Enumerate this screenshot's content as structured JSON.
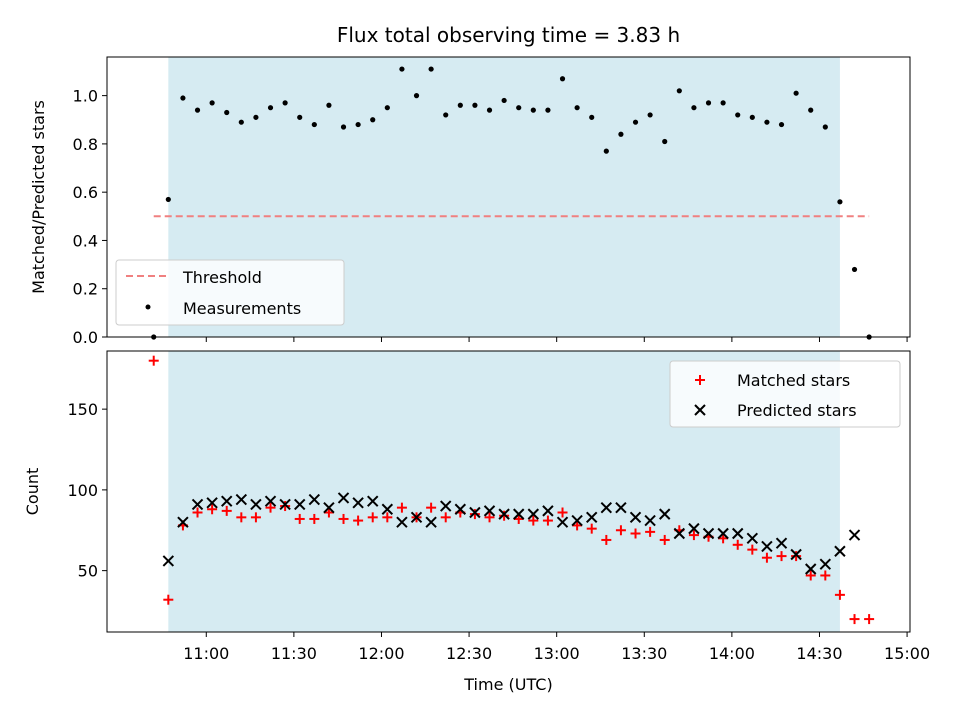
{
  "chart_data": [
    {
      "type": "scatter",
      "title": "Flux total observing time = 3.83 h",
      "xlabel": "",
      "ylabel": "Matched/Predicted stars",
      "ylim": [
        0,
        1.16
      ],
      "yticks": [
        "0.0",
        "0.2",
        "0.4",
        "0.6",
        "0.8",
        "1.0"
      ],
      "shaded_range": [
        "10:47",
        "14:37"
      ],
      "legend": {
        "placement": "lower-left",
        "entries": [
          "Threshold",
          "Measurements"
        ]
      },
      "threshold": {
        "name": "Threshold",
        "value": 0.5,
        "x_range": [
          "10:42",
          "14:47"
        ],
        "color": "#f08080"
      },
      "series": [
        {
          "name": "Measurements",
          "color": "#000000",
          "x": [
            "10:42",
            "10:47",
            "10:52",
            "10:57",
            "11:02",
            "11:07",
            "11:12",
            "11:17",
            "11:22",
            "11:27",
            "11:32",
            "11:37",
            "11:42",
            "11:47",
            "11:52",
            "11:57",
            "12:02",
            "12:07",
            "12:12",
            "12:17",
            "12:22",
            "12:27",
            "12:32",
            "12:37",
            "12:42",
            "12:47",
            "12:52",
            "12:57",
            "13:02",
            "13:07",
            "13:12",
            "13:17",
            "13:22",
            "13:27",
            "13:32",
            "13:37",
            "13:42",
            "13:47",
            "13:52",
            "13:57",
            "14:02",
            "14:07",
            "14:12",
            "14:17",
            "14:22",
            "14:27",
            "14:32",
            "14:37",
            "14:42",
            "14:47"
          ],
          "y": [
            0.0,
            0.57,
            0.99,
            0.94,
            0.97,
            0.93,
            0.89,
            0.91,
            0.95,
            0.97,
            0.91,
            0.88,
            0.96,
            0.87,
            0.88,
            0.9,
            0.95,
            1.11,
            1.0,
            1.11,
            0.92,
            0.96,
            0.96,
            0.94,
            0.98,
            0.95,
            0.94,
            0.94,
            1.07,
            0.95,
            0.91,
            0.77,
            0.84,
            0.89,
            0.92,
            0.81,
            1.02,
            0.95,
            0.97,
            0.97,
            0.92,
            0.91,
            0.89,
            0.88,
            1.01,
            0.94,
            0.87,
            0.56,
            0.28,
            0.0
          ]
        }
      ]
    },
    {
      "type": "scatter",
      "title": "",
      "xlabel": "Time (UTC)",
      "ylabel": "Count",
      "ylim": [
        12,
        186
      ],
      "yticks": [
        "50",
        "100",
        "150"
      ],
      "xticks": [
        "11:00",
        "11:30",
        "12:00",
        "12:30",
        "13:00",
        "13:30",
        "14:00",
        "14:30",
        "15:00"
      ],
      "shaded_range": [
        "10:47",
        "14:37"
      ],
      "legend": {
        "placement": "top-right",
        "entries": [
          "Matched stars",
          "Predicted stars"
        ]
      },
      "series": [
        {
          "name": "Matched stars",
          "color": "#ff0000",
          "marker": "+",
          "x": [
            "10:42",
            "10:47",
            "10:52",
            "10:57",
            "11:02",
            "11:07",
            "11:12",
            "11:17",
            "11:22",
            "11:27",
            "11:32",
            "11:37",
            "11:42",
            "11:47",
            "11:52",
            "11:57",
            "12:02",
            "12:07",
            "12:12",
            "12:17",
            "12:22",
            "12:27",
            "12:32",
            "12:37",
            "12:42",
            "12:47",
            "12:52",
            "12:57",
            "13:02",
            "13:07",
            "13:12",
            "13:17",
            "13:22",
            "13:27",
            "13:32",
            "13:37",
            "13:42",
            "13:47",
            "13:52",
            "13:57",
            "14:02",
            "14:07",
            "14:12",
            "14:17",
            "14:22",
            "14:27",
            "14:32",
            "14:37",
            "14:42",
            "14:47"
          ],
          "y": [
            180,
            32,
            78,
            86,
            88,
            87,
            83,
            83,
            89,
            90,
            82,
            82,
            86,
            82,
            81,
            83,
            83,
            89,
            83,
            89,
            83,
            86,
            85,
            83,
            84,
            82,
            81,
            81,
            86,
            78,
            76,
            69,
            75,
            73,
            74,
            69,
            75,
            72,
            71,
            70,
            66,
            63,
            58,
            59,
            59,
            47,
            47,
            35,
            20,
            20
          ]
        },
        {
          "name": "Predicted stars",
          "color": "#000000",
          "marker": "x",
          "x": [
            "10:47",
            "10:52",
            "10:57",
            "11:02",
            "11:07",
            "11:12",
            "11:17",
            "11:22",
            "11:27",
            "11:32",
            "11:37",
            "11:42",
            "11:47",
            "11:52",
            "11:57",
            "12:02",
            "12:07",
            "12:12",
            "12:17",
            "12:22",
            "12:27",
            "12:32",
            "12:37",
            "12:42",
            "12:47",
            "12:52",
            "12:57",
            "13:02",
            "13:07",
            "13:12",
            "13:17",
            "13:22",
            "13:27",
            "13:32",
            "13:37",
            "13:42",
            "13:47",
            "13:52",
            "13:57",
            "14:02",
            "14:07",
            "14:12",
            "14:17",
            "14:22",
            "14:27",
            "14:32",
            "14:37",
            "14:42"
          ],
          "y": [
            56,
            80,
            91,
            92,
            93,
            94,
            91,
            93,
            91,
            91,
            94,
            89,
            95,
            92,
            93,
            88,
            80,
            83,
            80,
            90,
            88,
            86,
            87,
            85,
            85,
            85,
            87,
            80,
            81,
            83,
            89,
            89,
            83,
            81,
            85,
            73,
            76,
            73,
            73,
            73,
            70,
            65,
            67,
            60,
            51,
            54,
            62,
            72
          ]
        }
      ]
    }
  ]
}
